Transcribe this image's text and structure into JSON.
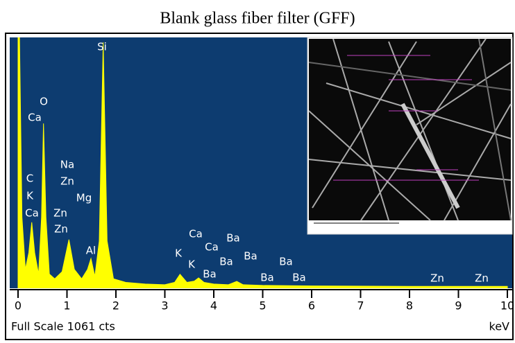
{
  "chart_data": {
    "type": "area",
    "title": "Blank glass fiber filter (GFF)",
    "x_label": "keV",
    "footer": "Full Scale 1061 cts",
    "xlim": [
      0,
      10
    ],
    "xticks": [
      0,
      1,
      2,
      3,
      4,
      5,
      6,
      7,
      8,
      9,
      10
    ],
    "ylim": [
      0,
      1061
    ],
    "color": "#ffff00",
    "background": "#0d3c70",
    "x": [
      0,
      0.03,
      0.08,
      0.15,
      0.22,
      0.28,
      0.34,
      0.42,
      0.48,
      0.52,
      0.57,
      0.64,
      0.75,
      0.9,
      1.04,
      1.15,
      1.3,
      1.42,
      1.49,
      1.57,
      1.66,
      1.74,
      1.82,
      1.95,
      2.2,
      2.6,
      3.0,
      3.2,
      3.31,
      3.45,
      3.6,
      3.69,
      3.8,
      4.0,
      4.3,
      4.47,
      4.6,
      5.0,
      6.0,
      8.0,
      10.0
    ],
    "values": [
      1061,
      1061,
      300,
      80,
      150,
      279,
      150,
      60,
      300,
      697,
      300,
      60,
      40,
      70,
      206,
      80,
      40,
      80,
      126,
      50,
      200,
      1040,
      200,
      40,
      25,
      18,
      15,
      25,
      59,
      25,
      30,
      44,
      25,
      18,
      15,
      29,
      15,
      12,
      10,
      8,
      8
    ],
    "peak_labels": [
      "Si",
      "O",
      "Ca",
      "C",
      "K",
      "Ca",
      "Na",
      "Zn",
      "Mg",
      "Zn",
      "Zn",
      "Al",
      "Ca",
      "Ba",
      "Ca",
      "K",
      "Ba",
      "K",
      "Ba",
      "Ba",
      "Ba",
      "Ba",
      "Ba",
      "Zn",
      "Zn"
    ]
  }
}
